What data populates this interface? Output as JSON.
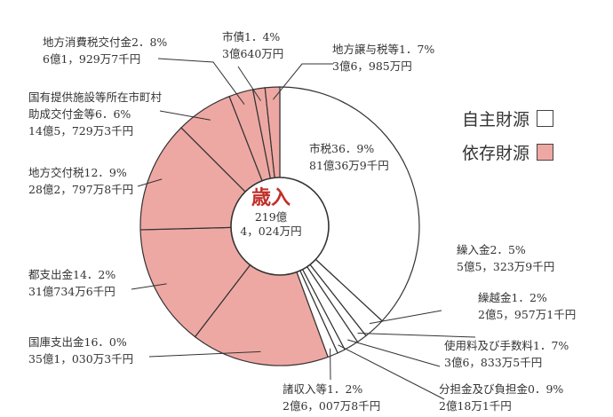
{
  "chart_data": {
    "type": "pie",
    "center": {
      "title": "歳入",
      "total_line1": "219億",
      "total_line2": "4，024万円"
    },
    "legend": [
      {
        "label": "自主財源",
        "color": "#ffffff"
      },
      {
        "label": "依存財源",
        "color": "#eea8a3"
      }
    ],
    "slices": [
      {
        "label": "市税36．9%",
        "value_text": "81億36万9千円",
        "percent": 36.9,
        "group": "自主財源"
      },
      {
        "label": "繰入金2．5%",
        "value_text": "5億5，323万9千円",
        "percent": 2.5,
        "group": "自主財源"
      },
      {
        "label": "繰越金1．2%",
        "value_text": "2億5，957万1千円",
        "percent": 1.2,
        "group": "自主財源"
      },
      {
        "label": "使用料及び手数料1．7%",
        "value_text": "3億6，833万5千円",
        "percent": 1.7,
        "group": "自主財源"
      },
      {
        "label": "分担金及び負担金0．9%",
        "value_text": "2億18万1千円",
        "percent": 0.9,
        "group": "自主財源"
      },
      {
        "label": "諸収入等1．2%",
        "value_text": "2億6，007万8千円",
        "percent": 1.2,
        "group": "自主財源"
      },
      {
        "label": "国庫支出金16．0%",
        "value_text": "35億1，030万3千円",
        "percent": 16.0,
        "group": "依存財源"
      },
      {
        "label": "都支出金14．2%",
        "value_text": "31億734万6千円",
        "percent": 14.2,
        "group": "依存財源"
      },
      {
        "label": "地方交付税12．9%",
        "value_text": "28億2，797万8千円",
        "percent": 12.9,
        "group": "依存財源"
      },
      {
        "label": "国有提供施設等所在市町村助成交付金等6．6%",
        "value_text": "14億5，729万3千円",
        "percent": 6.6,
        "group": "依存財源"
      },
      {
        "label": "地方消費税交付金2．8%",
        "value_text": "6億1，929万7千円",
        "percent": 2.8,
        "group": "依存財源"
      },
      {
        "label": "市債1．4%",
        "value_text": "3億640万円",
        "percent": 1.4,
        "group": "依存財源"
      },
      {
        "label": "地方譲与税等1．7%",
        "value_text": "3億6，985万円",
        "percent": 1.7,
        "group": "依存財源"
      }
    ]
  }
}
